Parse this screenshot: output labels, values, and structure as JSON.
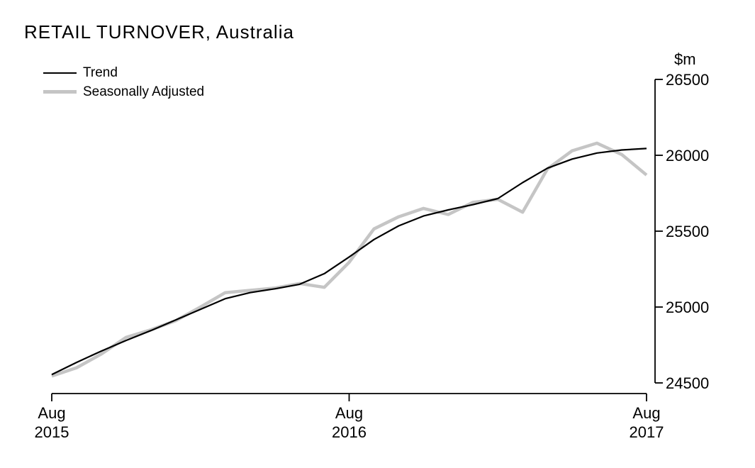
{
  "title": "RETAIL TURNOVER, Australia",
  "legend": [
    {
      "label": "Trend",
      "color": "#000000"
    },
    {
      "label": "Seasonally Adjusted",
      "color": "#c5c5c5"
    }
  ],
  "y_axis": {
    "unit_label": "$m",
    "tick_labels": [
      "26500",
      "26000",
      "25500",
      "25000",
      "24500"
    ],
    "tick_values": [
      26500,
      26000,
      25500,
      25000,
      24500
    ]
  },
  "x_axis": {
    "ticks": [
      {
        "line1": "Aug",
        "line2": "2015",
        "month_index": 0
      },
      {
        "line1": "Aug",
        "line2": "2016",
        "month_index": 12
      },
      {
        "line1": "Aug",
        "line2": "2017",
        "month_index": 24
      }
    ]
  },
  "chart_data": {
    "type": "line",
    "title": "RETAIL TURNOVER, Australia",
    "xlabel": "",
    "ylabel": "$m",
    "ylim": [
      24500,
      26500
    ],
    "grid": false,
    "legend_position": "top-left",
    "categories": [
      "Aug 2015",
      "Sep 2015",
      "Oct 2015",
      "Nov 2015",
      "Dec 2015",
      "Jan 2016",
      "Feb 2016",
      "Mar 2016",
      "Apr 2016",
      "May 2016",
      "Jun 2016",
      "Jul 2016",
      "Aug 2016",
      "Sep 2016",
      "Oct 2016",
      "Nov 2016",
      "Dec 2016",
      "Jan 2017",
      "Feb 2017",
      "Mar 2017",
      "Apr 2017",
      "May 2017",
      "Jun 2017",
      "Jul 2017",
      "Aug 2017"
    ],
    "series": [
      {
        "name": "Trend",
        "color": "#000000",
        "stroke_width": 2.2,
        "values": [
          24555,
          24635,
          24710,
          24780,
          24845,
          24915,
          24985,
          25055,
          25095,
          25120,
          25150,
          25220,
          25330,
          25445,
          25535,
          25600,
          25640,
          25675,
          25715,
          25820,
          25915,
          25975,
          26015,
          26035,
          26045
        ]
      },
      {
        "name": "Seasonally Adjusted",
        "color": "#c5c5c5",
        "stroke_width": 4.5,
        "values": [
          24545,
          24600,
          24690,
          24800,
          24850,
          24910,
          25000,
          25095,
          25110,
          25125,
          25155,
          25130,
          25295,
          25515,
          25595,
          25650,
          25610,
          25690,
          25710,
          25625,
          25910,
          26030,
          26080,
          26005,
          25870
        ]
      }
    ]
  }
}
